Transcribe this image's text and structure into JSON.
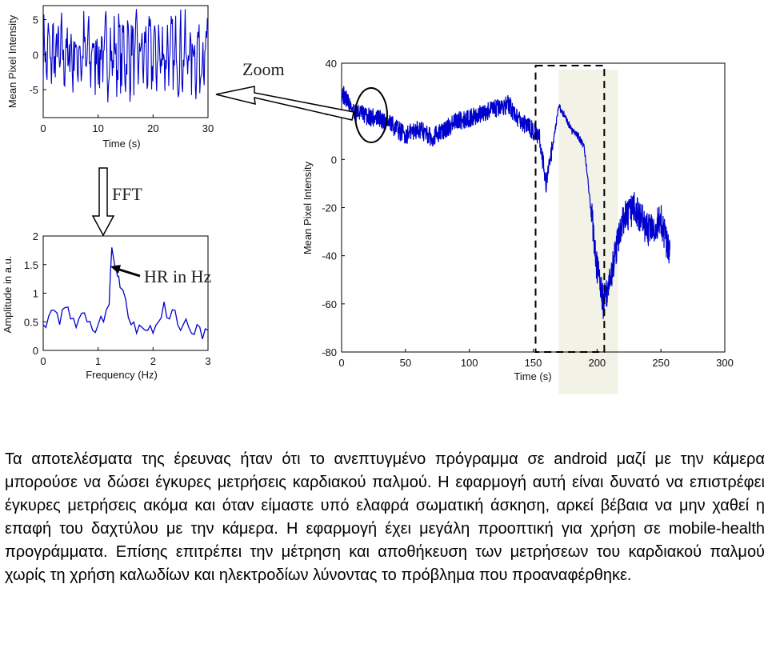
{
  "chart_data": [
    {
      "id": "time_zoom",
      "type": "line",
      "xlabel": "Time (s)",
      "ylabel": "Mean Pixel Intensity",
      "xlim": [
        0,
        30
      ],
      "ylim": [
        -9,
        7
      ],
      "xticks": [
        0,
        10,
        20,
        30
      ],
      "yticks": [
        5,
        0,
        -5
      ],
      "grid": false,
      "color": "#0000cc",
      "series": [
        {
          "shape": "noisy oscillation around 0, amplitude roughly ±6"
        }
      ]
    },
    {
      "id": "fft",
      "type": "line",
      "xlabel": "Frequency (Hz)",
      "ylabel": "Amplitude in a.u.",
      "xlim": [
        0,
        3
      ],
      "ylim": [
        0,
        2
      ],
      "xticks": [
        0,
        1,
        2,
        3
      ],
      "yticks": [
        0,
        0.5,
        1,
        1.5,
        2
      ],
      "grid": false,
      "color": "#0000cc",
      "series": [
        {
          "x": [
            0,
            0.1,
            0.2,
            0.3,
            0.4,
            0.5,
            0.6,
            0.7,
            0.8,
            0.9,
            1.0,
            1.1,
            1.2,
            1.25,
            1.3,
            1.35,
            1.4,
            1.5,
            1.6,
            1.7,
            1.8,
            1.9,
            2.0,
            2.1,
            2.2,
            2.3,
            2.4,
            2.5,
            2.6,
            2.7,
            2.8,
            2.9,
            3.0
          ],
          "y": [
            0.45,
            0.6,
            0.7,
            0.45,
            0.75,
            0.55,
            0.4,
            0.65,
            0.5,
            0.35,
            0.45,
            0.5,
            0.8,
            1.8,
            1.5,
            1.3,
            1.1,
            0.9,
            0.45,
            0.3,
            0.4,
            0.35,
            0.3,
            0.5,
            0.85,
            0.55,
            0.7,
            0.35,
            0.55,
            0.3,
            0.45,
            0.2,
            0.35
          ]
        }
      ]
    },
    {
      "id": "full_signal",
      "type": "line",
      "xlabel": "Time (s)",
      "ylabel": "Mean Pixel Intensity",
      "xlim": [
        0,
        300
      ],
      "ylim": [
        -80,
        40
      ],
      "xticks": [
        0,
        50,
        100,
        150,
        200,
        250,
        300
      ],
      "yticks": [
        40,
        20,
        0,
        -20,
        -40,
        -60,
        -80
      ],
      "grid": false,
      "color": "#0000cc",
      "series": [
        {
          "x": [
            0,
            10,
            20,
            30,
            40,
            50,
            60,
            70,
            80,
            90,
            100,
            110,
            120,
            130,
            140,
            150,
            155,
            160,
            165,
            170,
            175,
            180,
            185,
            190,
            195,
            200,
            205,
            210,
            220,
            230,
            240,
            250,
            257
          ],
          "y": [
            28,
            20,
            18,
            17,
            14,
            10,
            13,
            9,
            12,
            16,
            17,
            19,
            21,
            23,
            16,
            12,
            9,
            -10,
            5,
            22,
            18,
            12,
            10,
            5,
            -20,
            -45,
            -60,
            -50,
            -25,
            -20,
            -30,
            -25,
            -40
          ]
        }
      ],
      "highlight_range": [
        170,
        210
      ],
      "box_range": [
        150,
        200
      ]
    }
  ],
  "annotations": {
    "zoom": "Zoom",
    "fft": "FFT",
    "hr": "HR in Hz"
  },
  "paragraph": [
    "Τα αποτελέσματα της έρευνας ήταν ότι το ανεπτυγμένο πρόγραμμα σε android μαζί με την κάμερα μπορούσε να δώσει έγκυρες μετρήσεις καρδιακού παλμού. Η εφαρμογή αυτή είναι δυνατό να επιστρέφει έγκυρες μετρήσεις ακόμα και όταν είμαστε υπό ελαφρά σωματική άσκηση, αρκεί βέβαια να μην χαθεί η επαφή του δαχτύλου με την κάμερα. Η εφαρμογή έχει μεγάλη προοπτική για χρήση σε mobile-health προγράμματα. Επίσης επιτρέπει την μέτρηση και αποθήκευση των μετρήσεων του καρδιακού παλμού χωρίς τη χρήση καλωδίων και ηλεκτροδίων λύνοντας το πρόβλημα που προαναφέρθηκε."
  ]
}
